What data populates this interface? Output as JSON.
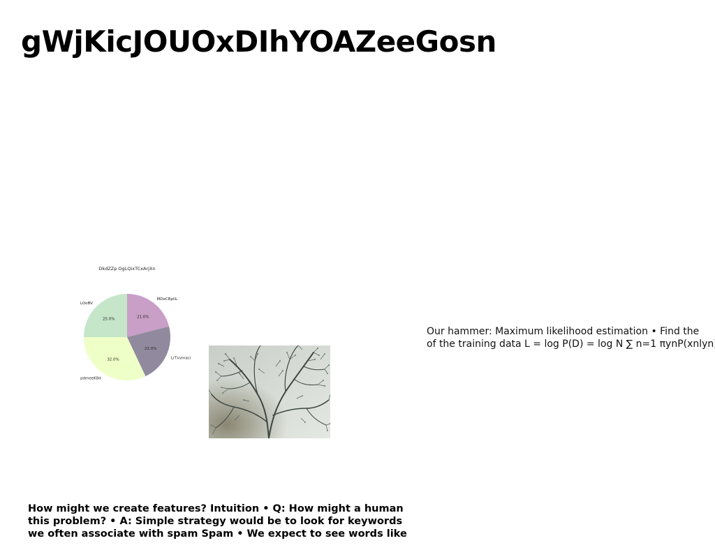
{
  "slide": {
    "title": "gWjKicJOUOxDIhYOAZeeGosn",
    "side_text_lines": [
      "Our hammer: Maximum likelihood estimation • Find the",
      "of the training data L = log P(D) = log N ∑ n=1 πynP(xnlyn)"
    ],
    "bottom_text_lines": [
      "How might we create features? Intuition • Q: How might a human",
      "this problem? • A: Simple strategy would be to look for keywords",
      "we often associate with spam Spam • We expect to see words like"
    ],
    "photo_subject": "frosted-shrub-branches-photo"
  },
  "chart_data": {
    "type": "pie",
    "title": "DkdZZp OgLQixTCxArjXn",
    "slices": [
      {
        "label": "MDeCBpllL",
        "value": 21.0,
        "pct_label": "21.0%",
        "color": "#c99ec7"
      },
      {
        "label": "LrTxvmaci",
        "value": 22.0,
        "pct_label": "22.0%",
        "color": "#918a9f"
      },
      {
        "label": "pdmeeK8d",
        "value": 32.0,
        "pct_label": "32.0%",
        "color": "#eeffc8"
      },
      {
        "label": "LOoBV",
        "value": 25.0,
        "pct_label": "25.0%",
        "color": "#c5e6c8"
      }
    ],
    "start_angle_deg": 90,
    "direction": "clockwise"
  }
}
